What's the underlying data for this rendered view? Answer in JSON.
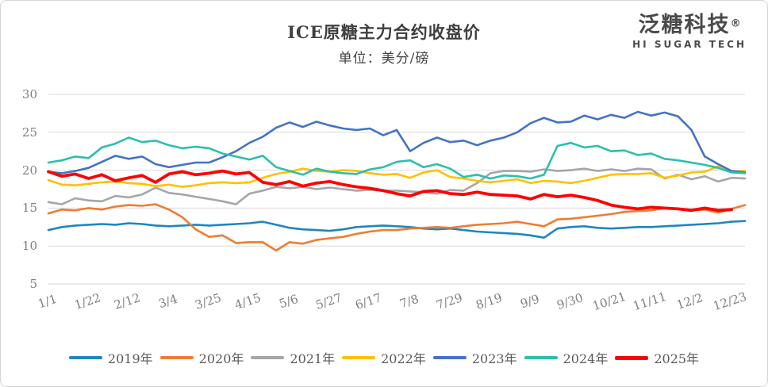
{
  "header": {
    "title": "ICE原糖主力合约收盘价",
    "subtitle": "单位：美分/磅"
  },
  "logo": {
    "cn": "泛糖科技",
    "reg": "®",
    "en": "HI SUGAR TECH"
  },
  "chart_data": {
    "type": "line",
    "title": "ICE原糖主力合约收盘价",
    "unit_label": "单位：美分/磅",
    "xlabel": "",
    "ylabel": "",
    "ylim": [
      5,
      30
    ],
    "y_ticks": [
      5,
      10,
      15,
      20,
      25,
      30
    ],
    "grid": "horizontal",
    "legend_position": "bottom",
    "x_tick_labels": [
      "1/1",
      "1/22",
      "2/12",
      "3/4",
      "3/25",
      "4/15",
      "5/6",
      "5/27",
      "6/17",
      "7/8",
      "7/29",
      "8/19",
      "9/9",
      "9/30",
      "10/21",
      "11/11",
      "12/2",
      "12/23"
    ],
    "x_weekly": [
      "1/1",
      "1/8",
      "1/15",
      "1/22",
      "1/29",
      "2/5",
      "2/12",
      "2/19",
      "2/26",
      "3/4",
      "3/11",
      "3/18",
      "3/25",
      "4/1",
      "4/8",
      "4/15",
      "4/22",
      "4/29",
      "5/6",
      "5/13",
      "5/20",
      "5/27",
      "6/3",
      "6/10",
      "6/17",
      "6/24",
      "7/1",
      "7/8",
      "7/15",
      "7/22",
      "7/29",
      "8/5",
      "8/12",
      "8/19",
      "8/26",
      "9/2",
      "9/9",
      "9/16",
      "9/23",
      "9/30",
      "10/7",
      "10/14",
      "10/21",
      "10/28",
      "11/4",
      "11/11",
      "11/18",
      "11/25",
      "12/2",
      "12/9",
      "12/16",
      "12/23",
      "12/30"
    ],
    "series": [
      {
        "name": "2019年",
        "color": "#1F86C0",
        "width": 2.6,
        "values": [
          12.1,
          12.5,
          12.7,
          12.8,
          12.9,
          12.8,
          13.0,
          12.9,
          12.7,
          12.6,
          12.7,
          12.8,
          12.7,
          12.8,
          12.9,
          13.0,
          13.2,
          12.8,
          12.4,
          12.2,
          12.1,
          12.0,
          12.2,
          12.5,
          12.6,
          12.7,
          12.6,
          12.5,
          12.3,
          12.2,
          12.3,
          12.1,
          11.9,
          11.8,
          11.7,
          11.6,
          11.4,
          11.1,
          12.3,
          12.5,
          12.6,
          12.4,
          12.3,
          12.4,
          12.5,
          12.5,
          12.6,
          12.7,
          12.8,
          12.9,
          13.0,
          13.2,
          13.3
        ]
      },
      {
        "name": "2020年",
        "color": "#ED7D31",
        "width": 2.6,
        "values": [
          14.3,
          14.8,
          14.7,
          15.0,
          14.8,
          15.2,
          15.4,
          15.3,
          15.5,
          14.8,
          13.8,
          12.2,
          11.2,
          11.4,
          10.4,
          10.5,
          10.5,
          9.4,
          10.5,
          10.3,
          10.8,
          11.0,
          11.2,
          11.6,
          11.9,
          12.1,
          12.1,
          12.3,
          12.4,
          12.5,
          12.4,
          12.6,
          12.8,
          12.9,
          13.0,
          13.2,
          12.9,
          12.6,
          13.5,
          13.6,
          13.8,
          14.0,
          14.2,
          14.5,
          14.6,
          14.7,
          15.0,
          14.9,
          14.7,
          14.8,
          14.4,
          14.9,
          15.4
        ]
      },
      {
        "name": "2021年",
        "color": "#A6A6A6",
        "width": 2.6,
        "values": [
          15.8,
          15.5,
          16.3,
          16.0,
          15.9,
          16.6,
          16.4,
          16.8,
          17.7,
          17.0,
          16.8,
          16.5,
          16.2,
          15.9,
          15.5,
          16.9,
          17.3,
          17.8,
          17.6,
          17.8,
          17.5,
          17.7,
          17.5,
          17.3,
          17.4,
          17.3,
          17.3,
          17.2,
          17.1,
          16.9,
          17.4,
          17.3,
          18.3,
          19.6,
          19.9,
          19.9,
          19.8,
          20.1,
          19.9,
          20.0,
          20.2,
          19.9,
          20.1,
          19.9,
          20.2,
          20.1,
          18.9,
          19.4,
          18.8,
          19.2,
          18.5,
          19.0,
          18.9
        ]
      },
      {
        "name": "2022年",
        "color": "#FFC000",
        "width": 2.6,
        "values": [
          18.7,
          18.1,
          18.0,
          18.2,
          18.4,
          18.5,
          18.3,
          18.2,
          17.9,
          18.1,
          17.8,
          18.0,
          18.3,
          18.4,
          18.3,
          18.4,
          19.0,
          19.5,
          19.8,
          20.2,
          19.9,
          19.8,
          20.0,
          19.9,
          19.6,
          19.4,
          19.5,
          19.0,
          19.7,
          20.0,
          19.1,
          18.9,
          18.6,
          18.4,
          18.6,
          18.8,
          18.3,
          18.6,
          18.5,
          18.3,
          18.6,
          19.0,
          19.4,
          19.5,
          19.5,
          19.6,
          19.0,
          19.3,
          19.7,
          19.8,
          20.5,
          19.8,
          19.9
        ]
      },
      {
        "name": "2023年",
        "color": "#4472C4",
        "width": 2.6,
        "values": [
          19.8,
          19.6,
          19.9,
          20.3,
          21.1,
          21.9,
          21.5,
          21.8,
          20.8,
          20.4,
          20.7,
          21.0,
          21.0,
          21.7,
          22.5,
          23.6,
          24.4,
          25.6,
          26.3,
          25.7,
          26.4,
          25.9,
          25.5,
          25.3,
          25.5,
          24.6,
          25.3,
          22.5,
          23.6,
          24.3,
          23.7,
          23.9,
          23.3,
          23.9,
          24.3,
          25.0,
          26.2,
          26.9,
          26.3,
          26.4,
          27.2,
          26.7,
          27.3,
          26.9,
          27.7,
          27.2,
          27.6,
          27.1,
          25.3,
          21.8,
          20.8,
          19.9,
          19.7
        ]
      },
      {
        "name": "2024年",
        "color": "#2CBFAC",
        "width": 2.6,
        "values": [
          21.0,
          21.3,
          21.8,
          21.6,
          23.0,
          23.5,
          24.3,
          23.7,
          23.9,
          23.3,
          22.9,
          23.1,
          22.9,
          22.2,
          21.8,
          21.4,
          21.9,
          20.4,
          19.9,
          19.4,
          20.2,
          19.8,
          19.6,
          19.5,
          20.1,
          20.4,
          21.1,
          21.3,
          20.4,
          20.8,
          20.2,
          19.1,
          19.4,
          18.9,
          19.3,
          19.2,
          18.9,
          19.4,
          23.2,
          23.6,
          23.0,
          23.2,
          22.5,
          22.6,
          22.0,
          22.2,
          21.5,
          21.3,
          21.0,
          20.7,
          20.3,
          19.7,
          19.6
        ]
      },
      {
        "name": "2025年",
        "color": "#FF0000",
        "width": 3.8,
        "values": [
          19.8,
          19.2,
          19.5,
          18.9,
          19.4,
          18.6,
          19.0,
          19.3,
          18.4,
          19.5,
          19.8,
          19.4,
          19.6,
          19.9,
          19.5,
          19.7,
          18.4,
          18.1,
          18.5,
          17.9,
          18.3,
          18.5,
          18.1,
          17.8,
          17.6,
          17.3,
          16.9,
          16.6,
          17.2,
          17.3,
          16.9,
          16.8,
          17.1,
          16.8,
          16.7,
          16.6,
          16.2,
          16.8,
          16.5,
          16.7,
          16.4,
          16.0,
          15.4,
          15.1,
          14.9,
          15.1,
          15.0,
          14.9,
          14.7,
          15.0,
          14.7,
          14.8,
          null
        ]
      }
    ],
    "colors": {
      "grid": "#D9D9D9",
      "axis_text": "#7f7f7f",
      "title_text": "#3f3f3f",
      "legend_text": "#595959"
    }
  }
}
